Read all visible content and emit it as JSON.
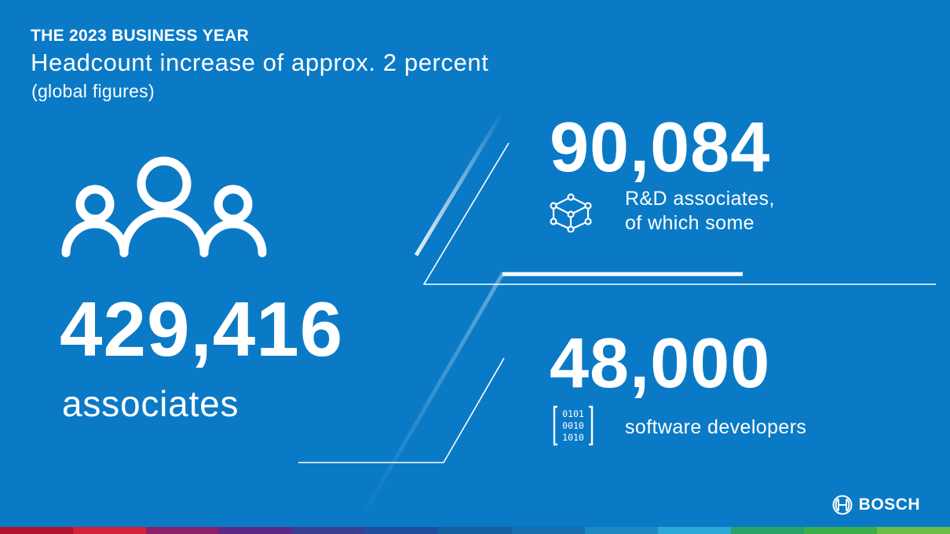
{
  "header": {
    "kicker": "THE 2023 BUSINESS YEAR",
    "headline": "Headcount increase of approx. 2 percent",
    "scope": "(global figures)"
  },
  "total": {
    "value": "429,416",
    "label": "associates",
    "icon": "people-icon"
  },
  "rd": {
    "value": "90,084",
    "label_line1": "R&D associates,",
    "label_line2": "of which some",
    "icon": "network-cube-icon"
  },
  "software": {
    "value": "48,000",
    "label": "software developers",
    "icon": "binary-code-icon",
    "code_lines": [
      "0101",
      "0010",
      "1010"
    ]
  },
  "brand": {
    "name": "BOSCH",
    "icon": "bosch-logo-icon"
  },
  "colors": {
    "background": "#0a7ac6",
    "text": "#ffffff",
    "stripe": [
      "#b0112d",
      "#d4213a",
      "#8b1f6a",
      "#5a2a86",
      "#3a3f8f",
      "#1f4f9c",
      "#17609f",
      "#156fae",
      "#1d8ac4",
      "#2aa9d6",
      "#27a36a",
      "#3caf4a",
      "#6cbd45"
    ]
  }
}
